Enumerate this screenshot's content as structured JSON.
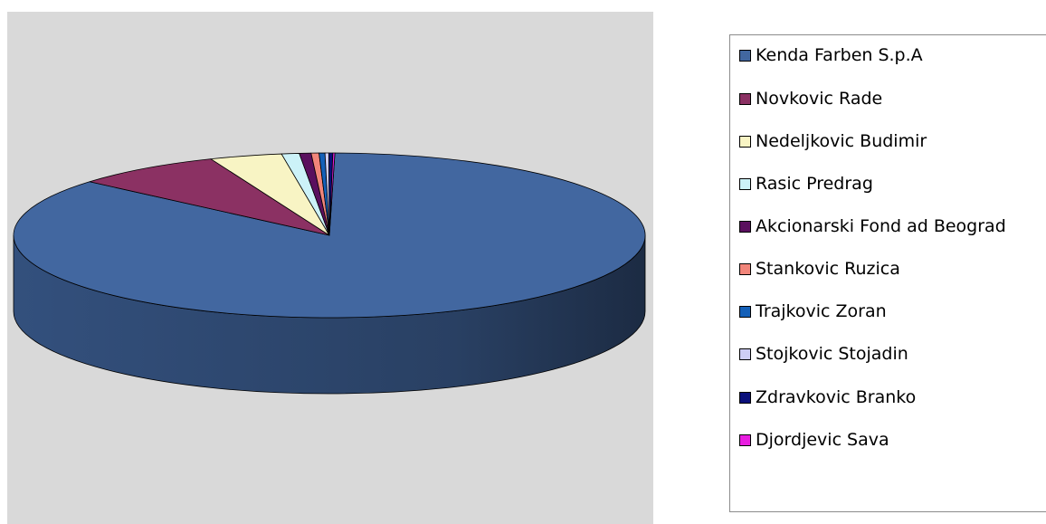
{
  "chart_data": {
    "type": "pie",
    "style": "3d",
    "legend_position": "right",
    "series": [
      {
        "name": "Kenda Farben S.p.A",
        "value": 86.0,
        "color": "#4267a0"
      },
      {
        "name": "Novkovic Rade",
        "value": 7.6,
        "color": "#8b3163"
      },
      {
        "name": "Nedeljkovic Budimir",
        "value": 3.7,
        "color": "#f8f4c4"
      },
      {
        "name": "Rasic Predrag",
        "value": 0.9,
        "color": "#ccf2f8"
      },
      {
        "name": "Akcionarski Fond ad Beograd",
        "value": 0.6,
        "color": "#5a0f5e"
      },
      {
        "name": "Stankovic Ruzica",
        "value": 0.4,
        "color": "#f1857a"
      },
      {
        "name": "Trajkovic Zoran",
        "value": 0.3,
        "color": "#1460b8"
      },
      {
        "name": "Stojkovic Stojadin",
        "value": 0.2,
        "color": "#cdcdf5"
      },
      {
        "name": "Zdravkovic Branko",
        "value": 0.2,
        "color": "#0a0f7a"
      },
      {
        "name": "Djordjevic Sava",
        "value": 0.1,
        "color": "#e81ee0"
      }
    ]
  }
}
